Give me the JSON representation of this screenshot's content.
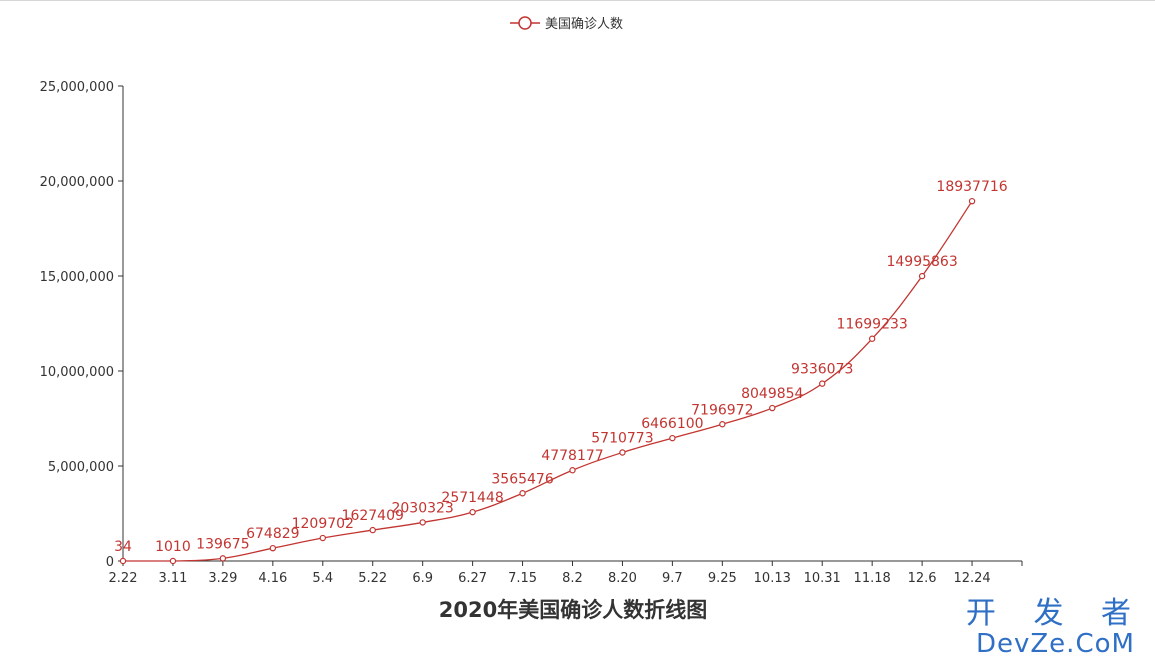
{
  "chart_data": {
    "type": "line",
    "title": "2020年美国确诊人数折线图",
    "categories": [
      "2.22",
      "3.11",
      "3.29",
      "4.16",
      "5.4",
      "5.22",
      "6.9",
      "6.27",
      "7.15",
      "8.2",
      "8.20",
      "9.7",
      "9.25",
      "10.13",
      "10.31",
      "11.18",
      "12.6",
      "12.24"
    ],
    "series": [
      {
        "name": "美国确诊人数",
        "color": "#c23531",
        "values": [
          34,
          1010,
          139675,
          674829,
          1209702,
          1627409,
          2030323,
          2571448,
          3565476,
          4778177,
          5710773,
          6466100,
          7196972,
          8049854,
          9336073,
          11699233,
          14995863,
          18937716
        ],
        "labels": [
          "34",
          "1010",
          "139675",
          "674829",
          "1209702",
          "1627409",
          "2030323",
          "2571448",
          "3565476",
          "4778177",
          "5710773",
          "6466100",
          "7196972",
          "8049854",
          "9336073",
          "11699233",
          "14995863",
          "18937716"
        ]
      }
    ],
    "ylim": [
      0,
      25000000
    ],
    "yticks": [
      0,
      5000000,
      10000000,
      15000000,
      20000000,
      25000000
    ],
    "ytick_labels": [
      "0",
      "5,000,000",
      "10,000,000",
      "15,000,000",
      "20,000,000",
      "25,000,000"
    ],
    "grid": false,
    "legend_position": "top-center",
    "smooth": true
  },
  "watermark": {
    "line1": "开 发 者",
    "line2": "DevZe.CoM"
  }
}
